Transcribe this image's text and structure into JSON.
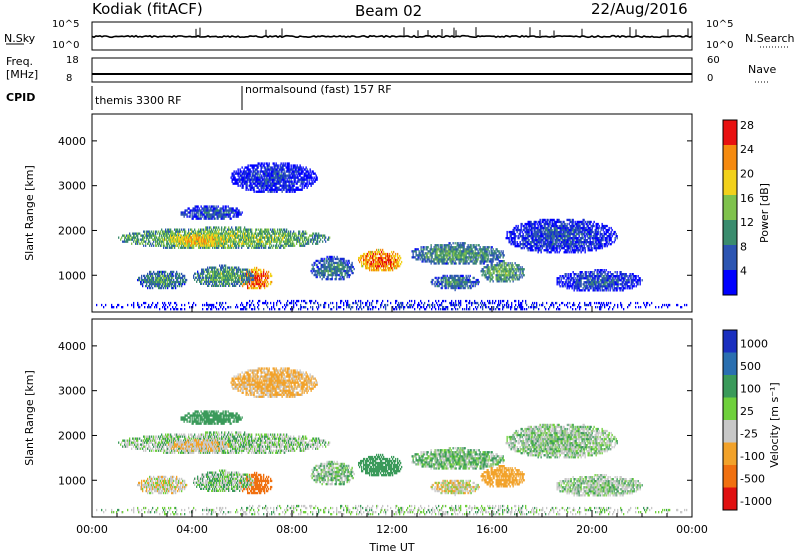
{
  "header": {
    "station": "Kodiak (fitACF)",
    "beam": "Beam 02",
    "date": "22/Aug/2016"
  },
  "nsky_panel": {
    "left_label": "N.Sky",
    "left_ticks": [
      "10^5",
      "10^0"
    ],
    "right_label": "N.Search",
    "right_ticks": [
      "10^5",
      "10^0"
    ]
  },
  "freq_panel": {
    "left_label_line1": "Freq.",
    "left_label_line2": "[MHz]",
    "left_ticks": [
      "18",
      "8"
    ],
    "right_label": "Nave",
    "right_ticks": [
      "60",
      "0"
    ]
  },
  "cpid": {
    "label": "CPID",
    "segments": [
      {
        "text": "themis 3300 RF",
        "start_hour": 0
      },
      {
        "text": "normalsound (fast) 157 RF",
        "start_hour": 6
      }
    ]
  },
  "power_panel": {
    "ylabel": "Slant Range [km]",
    "yticks": [
      "1000",
      "2000",
      "3000",
      "4000"
    ],
    "colorbar_label": "Power [dB]",
    "colorbar_ticks": [
      "4",
      "8",
      "12",
      "16",
      "20",
      "24",
      "28"
    ],
    "colorbar_colors": [
      "#0000ff",
      "#2c55b2",
      "#3a8c6e",
      "#7fc24c",
      "#f2d11b",
      "#f58a0f",
      "#e81010"
    ]
  },
  "velocity_panel": {
    "ylabel": "Slant Range [km]",
    "yticks": [
      "1000",
      "2000",
      "3000",
      "4000"
    ],
    "colorbar_label": "Velocity [m s⁻¹]",
    "colorbar_ticks": [
      "1000",
      "500",
      "100",
      "25",
      "-25",
      "-100",
      "-500",
      "-1000"
    ],
    "colorbar_colors": [
      "#1a2fbf",
      "#2a6fb0",
      "#3a9a5a",
      "#6fd03c",
      "#c8c8c8",
      "#f2a22a",
      "#f07010",
      "#e01010"
    ]
  },
  "xaxis": {
    "label": "Time UT",
    "ticks": [
      "00:00",
      "04:00",
      "08:00",
      "12:00",
      "16:00",
      "20:00",
      "00:00"
    ]
  },
  "chart_data": {
    "type": "heatmap",
    "title": "Kodiak (fitACF) Beam 02 22/Aug/2016",
    "xlabel": "Time UT",
    "ylabel": "Slant Range [km]",
    "xlim_hours": [
      0,
      24
    ],
    "ylim_km": [
      180,
      4600
    ],
    "power_units": "dB",
    "power_range": [
      3,
      30
    ],
    "velocity_units": "m s-1",
    "velocity_range": [
      -1000,
      1000
    ],
    "scatter_regions": [
      {
        "t0": 1.0,
        "t1": 9.5,
        "r0": 1550,
        "r1": 2050,
        "power": 17,
        "velocity": 10
      },
      {
        "t0": 3.0,
        "t1": 5.5,
        "r0": 1600,
        "r1": 1900,
        "power": 22,
        "velocity": -20
      },
      {
        "t0": 5.8,
        "t1": 7.2,
        "r0": 650,
        "r1": 1150,
        "power": 27,
        "velocity": -150
      },
      {
        "t0": 4.0,
        "t1": 6.5,
        "r0": 700,
        "r1": 1200,
        "power": 15,
        "velocity": 15
      },
      {
        "t0": 1.8,
        "t1": 3.8,
        "r0": 650,
        "r1": 1100,
        "power": 13,
        "velocity": -10
      },
      {
        "t0": 8.7,
        "t1": 10.5,
        "r0": 850,
        "r1": 1400,
        "power": 12,
        "velocity": 15
      },
      {
        "t0": 10.6,
        "t1": 12.4,
        "r0": 1050,
        "r1": 1550,
        "power": 26,
        "velocity": 60
      },
      {
        "t0": 12.7,
        "t1": 16.5,
        "r0": 1200,
        "r1": 1700,
        "power": 14,
        "velocity": 20
      },
      {
        "t0": 13.5,
        "t1": 15.5,
        "r0": 650,
        "r1": 1000,
        "power": 12,
        "velocity": -10
      },
      {
        "t0": 15.5,
        "t1": 17.3,
        "r0": 800,
        "r1": 1300,
        "power": 15,
        "velocity": -60
      },
      {
        "t0": 16.5,
        "t1": 21.0,
        "r0": 1450,
        "r1": 2250,
        "power": 9,
        "velocity": 10
      },
      {
        "t0": 18.5,
        "t1": 22.0,
        "r0": 600,
        "r1": 1100,
        "power": 9,
        "velocity": 10
      },
      {
        "t0": 5.5,
        "t1": 9.0,
        "r0": 2800,
        "r1": 3500,
        "power": 8,
        "velocity": -40
      },
      {
        "t0": 0.0,
        "t1": 24.0,
        "r0": 180,
        "r1": 420,
        "power": 7,
        "velocity": 5
      },
      {
        "t0": 3.5,
        "t1": 6.0,
        "r0": 2200,
        "r1": 2550,
        "power": 10,
        "velocity": 60
      }
    ]
  }
}
